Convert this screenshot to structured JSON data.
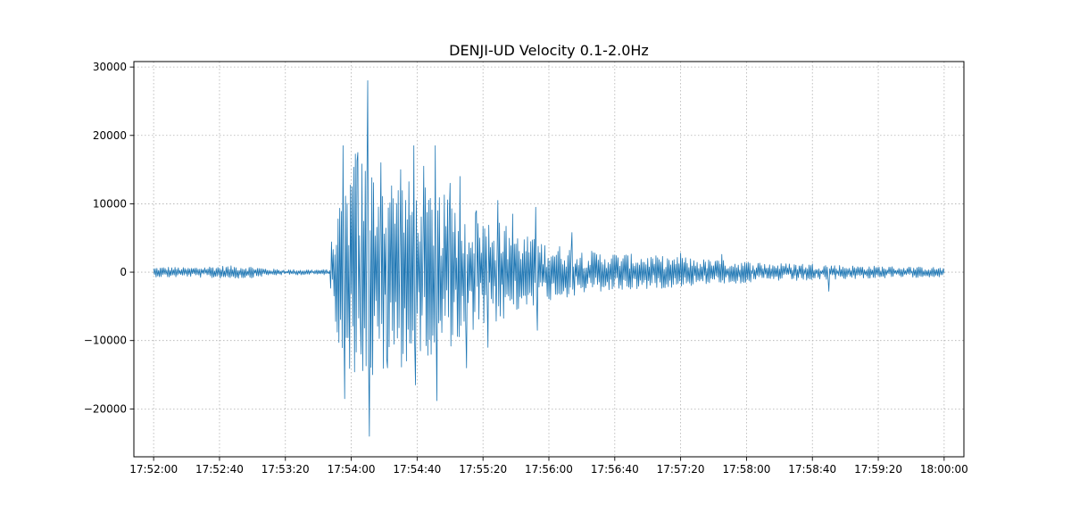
{
  "chart_data": {
    "type": "line",
    "title": "DENJI-UD Velocity 0.1-2.0Hz",
    "xlabel": "",
    "ylabel": "",
    "grid": true,
    "legend": "none",
    "xlim_seconds": [
      -12,
      492
    ],
    "ylim": [
      -27000,
      30800
    ],
    "x_ticks": [
      {
        "label": "17:52:00",
        "seconds": 0
      },
      {
        "label": "17:52:40",
        "seconds": 40
      },
      {
        "label": "17:53:20",
        "seconds": 80
      },
      {
        "label": "17:54:00",
        "seconds": 120
      },
      {
        "label": "17:54:40",
        "seconds": 160
      },
      {
        "label": "17:55:20",
        "seconds": 200
      },
      {
        "label": "17:56:00",
        "seconds": 240
      },
      {
        "label": "17:56:40",
        "seconds": 280
      },
      {
        "label": "17:57:20",
        "seconds": 320
      },
      {
        "label": "17:58:00",
        "seconds": 360
      },
      {
        "label": "17:58:40",
        "seconds": 400
      },
      {
        "label": "17:59:20",
        "seconds": 440
      },
      {
        "label": "18:00:00",
        "seconds": 480
      }
    ],
    "y_ticks": [
      {
        "label": "−20000",
        "value": -20000
      },
      {
        "label": "−10000",
        "value": -10000
      },
      {
        "label": "0",
        "value": 0
      },
      {
        "label": "10000",
        "value": 10000
      },
      {
        "label": "20000",
        "value": 20000
      },
      {
        "label": "30000",
        "value": 30000
      }
    ],
    "series": [
      {
        "name": "DENJI-UD",
        "color": "#1f77b4",
        "x_start_seconds": 0,
        "x_end_seconds": 480,
        "sample_interval_seconds": 0.5,
        "envelope": [
          [
            0,
            700
          ],
          [
            10,
            800
          ],
          [
            20,
            650
          ],
          [
            35,
            900
          ],
          [
            50,
            950
          ],
          [
            60,
            850
          ],
          [
            70,
            500
          ],
          [
            80,
            400
          ],
          [
            107,
            400
          ],
          [
            108,
            4500
          ],
          [
            113,
            11000
          ],
          [
            118,
            14000
          ],
          [
            122,
            18000
          ],
          [
            130,
            16000
          ],
          [
            140,
            15000
          ],
          [
            150,
            14000
          ],
          [
            160,
            13000
          ],
          [
            170,
            12000
          ],
          [
            180,
            11000
          ],
          [
            190,
            10000
          ],
          [
            200,
            8500
          ],
          [
            210,
            7500
          ],
          [
            220,
            6000
          ],
          [
            230,
            5000
          ],
          [
            240,
            4200
          ],
          [
            250,
            3800
          ],
          [
            260,
            3300
          ],
          [
            270,
            3000
          ],
          [
            280,
            2800
          ],
          [
            300,
            2500
          ],
          [
            320,
            2200
          ],
          [
            340,
            1800
          ],
          [
            360,
            1600
          ],
          [
            380,
            1300
          ],
          [
            400,
            1300
          ],
          [
            420,
            1000
          ],
          [
            440,
            900
          ],
          [
            460,
            800
          ],
          [
            480,
            700
          ]
        ],
        "peaks": [
          {
            "t": 115,
            "v": 18500
          },
          {
            "t": 116,
            "v": -18500
          },
          {
            "t": 124,
            "v": 17500
          },
          {
            "t": 126,
            "v": -12000
          },
          {
            "t": 130,
            "v": 28000
          },
          {
            "t": 131,
            "v": -24000
          },
          {
            "t": 133,
            "v": -15000
          },
          {
            "t": 138,
            "v": 16000
          },
          {
            "t": 142,
            "v": -14000
          },
          {
            "t": 150,
            "v": 15000
          },
          {
            "t": 158,
            "v": 18500
          },
          {
            "t": 159,
            "v": -16500
          },
          {
            "t": 164,
            "v": 15500
          },
          {
            "t": 171,
            "v": 18500
          },
          {
            "t": 172,
            "v": -18800
          },
          {
            "t": 180,
            "v": 13000
          },
          {
            "t": 186,
            "v": 14000
          },
          {
            "t": 190,
            "v": -14000
          },
          {
            "t": 196,
            "v": 9000
          },
          {
            "t": 203,
            "v": -11000
          },
          {
            "t": 209,
            "v": 10500
          },
          {
            "t": 218,
            "v": 8500
          },
          {
            "t": 232,
            "v": 9500
          },
          {
            "t": 233,
            "v": -8500
          },
          {
            "t": 254,
            "v": 5800
          },
          {
            "t": 320,
            "v": 2800
          },
          {
            "t": 345,
            "v": 2600
          },
          {
            "t": 410,
            "v": -2800
          }
        ]
      }
    ]
  }
}
